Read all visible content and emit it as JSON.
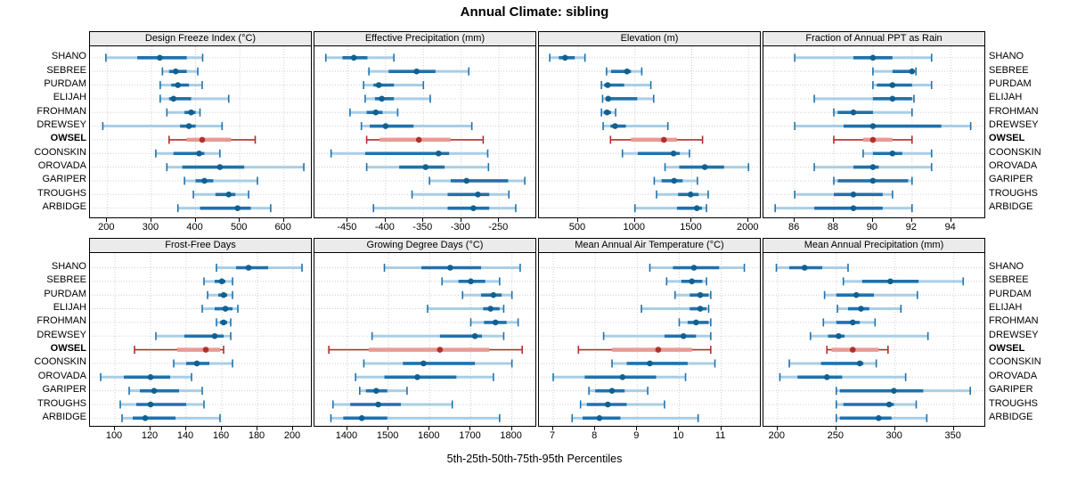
{
  "chart_data": {
    "type": "scatter",
    "variant": "percentile-interval dotplot (lattice-style trellis, 2x4 panels)",
    "title": "Annual Climate: sibling",
    "caption": "5th-25th-50th-75th-95th Percentiles",
    "percentile_labels": [
      "5th",
      "25th",
      "50th",
      "75th",
      "95th"
    ],
    "stations": [
      "SHANO",
      "SEBREE",
      "PURDAM",
      "ELIJAH",
      "FROHMAN",
      "DREWSEY",
      "OWSEL",
      "COONSKIN",
      "OROVADA",
      "GARIPER",
      "TROUGHS",
      "ARBIDGE"
    ],
    "highlight_station": "OWSEL",
    "colors": {
      "blue_dark": "#1f72ad",
      "blue_dot": "#11608f",
      "blue_light": "#a9cee6",
      "red_dark": "#b0302c",
      "red_light": "#e89b95",
      "grid": "#cfcfcf",
      "strip_bg": "#ebebeb",
      "border": "#000000"
    },
    "layout_hint": {
      "grid": [
        2,
        4
      ],
      "grid_lines": "dotted",
      "station_labels": "both-sides",
      "axis_position": "bottom"
    },
    "panels": [
      {
        "title": "Design Freeze Index (°C)",
        "xlim": [
          161,
          661
        ],
        "ticks": [
          200,
          300,
          400,
          500,
          600
        ],
        "values": [
          [
            197,
            268,
            319,
            380,
            416
          ],
          [
            325,
            340,
            355,
            380,
            405
          ],
          [
            320,
            345,
            360,
            385,
            415
          ],
          [
            320,
            340,
            350,
            390,
            475
          ],
          [
            335,
            375,
            390,
            400,
            410
          ],
          [
            190,
            365,
            385,
            400,
            460
          ],
          [
            340,
            380,
            415,
            480,
            535
          ],
          [
            310,
            350,
            408,
            420,
            455
          ],
          [
            335,
            370,
            455,
            510,
            645
          ],
          [
            375,
            400,
            420,
            440,
            540
          ],
          [
            395,
            445,
            475,
            490,
            520
          ],
          [
            360,
            410,
            495,
            525,
            570
          ]
        ]
      },
      {
        "title": "Effective Precipitation (mm)",
        "xlim": [
          -494,
          -202
        ],
        "ticks": [
          -450,
          -400,
          -350,
          -300,
          -250
        ],
        "values": [
          [
            -479,
            -457,
            -442,
            -424,
            -389
          ],
          [
            -422,
            -396,
            -359,
            -334,
            -290
          ],
          [
            -429,
            -416,
            -409,
            -389,
            -350
          ],
          [
            -427,
            -414,
            -405,
            -389,
            -341
          ],
          [
            -447,
            -425,
            -413,
            -404,
            -384
          ],
          [
            -432,
            -421,
            -400,
            -363,
            -286
          ],
          [
            -425,
            -408,
            -356,
            -314,
            -271
          ],
          [
            -472,
            -427,
            -330,
            -316,
            -265
          ],
          [
            -425,
            -382,
            -347,
            -322,
            -264
          ],
          [
            -342,
            -314,
            -293,
            -238,
            -216
          ],
          [
            -365,
            -318,
            -278,
            -263,
            -237
          ],
          [
            -416,
            -318,
            -284,
            -263,
            -228
          ]
        ]
      },
      {
        "title": "Elevation (m)",
        "xlim": [
          155,
          2100
        ],
        "ticks": [
          500,
          1000,
          1500,
          2000
        ],
        "values": [
          [
            250,
            330,
            385,
            470,
            560
          ],
          [
            750,
            790,
            930,
            965,
            1060
          ],
          [
            705,
            730,
            760,
            905,
            1140
          ],
          [
            715,
            740,
            765,
            1020,
            1165
          ],
          [
            705,
            725,
            755,
            790,
            830
          ],
          [
            720,
            785,
            825,
            920,
            1290
          ],
          [
            785,
            965,
            1255,
            1370,
            1595
          ],
          [
            890,
            1025,
            1340,
            1395,
            1480
          ],
          [
            1265,
            1390,
            1615,
            1785,
            2000
          ],
          [
            1170,
            1235,
            1345,
            1420,
            1550
          ],
          [
            1190,
            1380,
            1490,
            1560,
            1645
          ],
          [
            1000,
            1370,
            1545,
            1590,
            1630
          ]
        ]
      },
      {
        "title": "Fraction of Annual PPT as Rain",
        "xlim": [
          84.4,
          95.7
        ],
        "ticks": [
          86,
          88,
          90,
          92,
          94
        ],
        "values": [
          [
            86,
            89,
            90,
            91,
            93
          ],
          [
            90,
            91,
            92,
            92,
            92.2
          ],
          [
            90,
            90.2,
            91,
            92,
            93
          ],
          [
            87,
            90,
            91,
            92,
            92.1
          ],
          [
            88,
            88.2,
            89,
            90,
            92
          ],
          [
            86,
            88.5,
            90,
            93.5,
            95
          ],
          [
            88,
            89.5,
            90,
            91,
            92
          ],
          [
            89.5,
            90,
            91,
            91.5,
            93
          ],
          [
            87,
            89,
            90,
            90.3,
            93
          ],
          [
            88,
            88.2,
            90,
            91.8,
            92
          ],
          [
            86,
            88,
            89,
            90.5,
            91
          ],
          [
            85,
            87,
            89,
            90.5,
            92
          ]
        ]
      },
      {
        "title": "Frost-Free Days",
        "xlim": [
          86,
          210
        ],
        "ticks": [
          100,
          120,
          140,
          160,
          180,
          200
        ],
        "values": [
          [
            157,
            168,
            175,
            186,
            205
          ],
          [
            150,
            156,
            160,
            162,
            166
          ],
          [
            152,
            158,
            161,
            163,
            166
          ],
          [
            149,
            156,
            162,
            166,
            169
          ],
          [
            157,
            159,
            161,
            163,
            165
          ],
          [
            123,
            139,
            156,
            161,
            165
          ],
          [
            111,
            135,
            151,
            159,
            161
          ],
          [
            133,
            140,
            146,
            153,
            166
          ],
          [
            92,
            105,
            120,
            131,
            143
          ],
          [
            108,
            114,
            122,
            136,
            149
          ],
          [
            103,
            112,
            120,
            140,
            150
          ],
          [
            104,
            110,
            117,
            134,
            159
          ]
        ]
      },
      {
        "title": "Growing Degree Days (°C)",
        "xlim": [
          1320,
          1857
        ],
        "ticks": [
          1400,
          1500,
          1600,
          1700,
          1800
        ],
        "values": [
          [
            1490,
            1580,
            1650,
            1725,
            1820
          ],
          [
            1630,
            1670,
            1700,
            1735,
            1770
          ],
          [
            1680,
            1725,
            1755,
            1775,
            1800
          ],
          [
            1595,
            1730,
            1748,
            1770,
            1780
          ],
          [
            1700,
            1732,
            1760,
            1787,
            1815
          ],
          [
            1460,
            1625,
            1710,
            1727,
            1780
          ],
          [
            1355,
            1452,
            1625,
            1745,
            1825
          ],
          [
            1440,
            1535,
            1585,
            1710,
            1800
          ],
          [
            1420,
            1490,
            1570,
            1665,
            1755
          ],
          [
            1430,
            1445,
            1470,
            1497,
            1545
          ],
          [
            1365,
            1407,
            1475,
            1530,
            1655
          ],
          [
            1360,
            1390,
            1435,
            1497,
            1770
          ]
        ]
      },
      {
        "title": "Mean Annual Air Temperature (°C)",
        "xlim": [
          6.66,
          11.92
        ],
        "ticks": [
          7,
          8,
          9,
          10,
          11
        ],
        "values": [
          [
            9.3,
            9.85,
            10.35,
            10.95,
            11.55
          ],
          [
            9.7,
            10.05,
            10.3,
            10.55,
            10.65
          ],
          [
            9.9,
            10.25,
            10.5,
            10.7,
            10.75
          ],
          [
            9.1,
            10.25,
            10.5,
            10.65,
            10.7
          ],
          [
            10.0,
            10.2,
            10.4,
            10.7,
            10.75
          ],
          [
            8.2,
            9.65,
            10.1,
            10.4,
            10.75
          ],
          [
            7.6,
            8.4,
            9.5,
            10.3,
            10.75
          ],
          [
            8.4,
            8.75,
            9.3,
            10.2,
            10.85
          ],
          [
            7.0,
            7.75,
            8.65,
            9.45,
            10.15
          ],
          [
            7.85,
            8.0,
            8.4,
            8.7,
            9.25
          ],
          [
            7.65,
            7.8,
            8.3,
            8.75,
            9.65
          ],
          [
            7.45,
            7.7,
            8.1,
            8.6,
            10.45
          ]
        ]
      },
      {
        "title": "Mean Annual Precipitation (mm)",
        "xlim": [
          188,
          376
        ],
        "ticks": [
          200,
          250,
          300,
          350
        ],
        "values": [
          [
            199,
            210,
            223,
            238,
            260
          ],
          [
            256,
            272,
            296,
            320,
            358
          ],
          [
            240,
            250,
            267,
            282,
            319
          ],
          [
            251,
            260,
            271,
            278,
            305
          ],
          [
            239,
            250,
            264,
            270,
            283
          ],
          [
            228,
            243,
            252,
            257,
            328
          ],
          [
            242,
            246,
            264,
            286,
            294
          ],
          [
            210,
            237,
            270,
            273,
            284
          ],
          [
            202,
            217,
            242,
            255,
            309
          ],
          [
            250,
            253,
            299,
            324,
            364
          ],
          [
            250,
            256,
            295,
            299,
            318
          ],
          [
            250,
            253,
            286,
            297,
            327
          ]
        ]
      }
    ]
  }
}
